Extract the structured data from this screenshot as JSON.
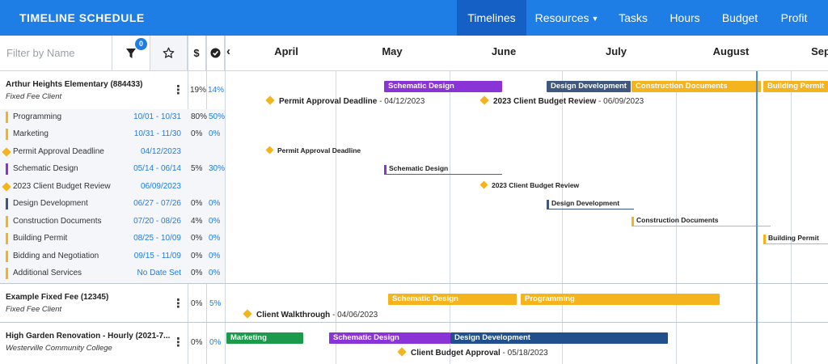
{
  "app": {
    "title": "TIMELINE SCHEDULE"
  },
  "nav": [
    {
      "label": "Timelines",
      "active": true
    },
    {
      "label": "Resources",
      "dropdown": true
    },
    {
      "label": "Tasks"
    },
    {
      "label": "Hours"
    },
    {
      "label": "Budget"
    },
    {
      "label": "Profit"
    }
  ],
  "toolbar": {
    "filter_placeholder": "Filter by Name",
    "filter_count": "0",
    "dollar_label": "$",
    "icons": [
      "filter-icon",
      "star-icon",
      "check-circle-icon",
      "chevron-left-icon"
    ]
  },
  "months": [
    "April",
    "May",
    "June",
    "July",
    "August",
    "Sep"
  ],
  "projects": [
    {
      "title": "Arthur Heights Elementary (884433)",
      "subtitle": "Fixed Fee Client",
      "pct_spent": "19%",
      "pct_complete": "14%",
      "bars": [
        {
          "label": "Schematic Design",
          "color": "#8a33d6"
        },
        {
          "label": "Design Development",
          "color": "#3e587f"
        },
        {
          "label": "Construction Documents",
          "color": "#f5b41e"
        },
        {
          "label": "Building Permit",
          "color": "#f5b41e"
        }
      ],
      "milestones": [
        {
          "name": "Permit Approval Deadline",
          "date": " - 04/12/2023"
        },
        {
          "name": "2023 Client Budget Review",
          "date": " - 06/09/2023"
        }
      ],
      "tasks": [
        {
          "name": "Programming",
          "date": "10/01 - 10/31",
          "pct1": "80%",
          "pct2": "50%",
          "color": "#f5b41e",
          "type": "task"
        },
        {
          "name": "Marketing",
          "date": "10/31 - 11/30",
          "pct1": "0%",
          "pct2": "0%",
          "color": "#f5b41e",
          "type": "task"
        },
        {
          "name": "Permit Approval Deadline",
          "date": "04/12/2023",
          "pct1": "",
          "pct2": "",
          "color": "#f5b41e",
          "type": "milestone"
        },
        {
          "name": "Schematic Design",
          "date": "05/14 - 06/14",
          "pct1": "5%",
          "pct2": "30%",
          "color": "#8a33d6",
          "type": "task"
        },
        {
          "name": "2023 Client Budget Review",
          "date": "06/09/2023",
          "pct1": "",
          "pct2": "",
          "color": "#f5b41e",
          "type": "milestone"
        },
        {
          "name": "Design Development",
          "date": "06/27 - 07/26",
          "pct1": "0%",
          "pct2": "0%",
          "color": "#3e587f",
          "type": "task"
        },
        {
          "name": "Construction Documents",
          "date": "07/20 - 08/26",
          "pct1": "4%",
          "pct2": "0%",
          "color": "#f5b41e",
          "type": "task"
        },
        {
          "name": "Building Permit",
          "date": "08/25 - 10/09",
          "pct1": "0%",
          "pct2": "0%",
          "color": "#f5b41e",
          "type": "task"
        },
        {
          "name": "Bidding and Negotiation",
          "date": "09/15 - 11/09",
          "pct1": "0%",
          "pct2": "0%",
          "color": "#f5b41e",
          "type": "task"
        },
        {
          "name": "Additional Services",
          "date": "No Date Set",
          "pct1": "0%",
          "pct2": "0%",
          "color": "#f5b41e",
          "type": "task"
        }
      ],
      "timeline_tasks": [
        {
          "label": "Permit Approval Deadline",
          "type": "milestone"
        },
        {
          "label": "Schematic Design",
          "color": "#8a33d6"
        },
        {
          "label": "2023 Client Budget Review",
          "type": "milestone"
        },
        {
          "label": "Design Development",
          "color": "#3e587f"
        },
        {
          "label": "Construction Documents",
          "color": "#f5b41e"
        },
        {
          "label": "Building Permit",
          "color": "#f5b41e"
        }
      ]
    },
    {
      "title": "Example Fixed Fee (12345)",
      "subtitle": "Fixed Fee Client",
      "pct_spent": "0%",
      "pct_complete": "5%",
      "bars": [
        {
          "label": "Schematic Design",
          "color": "#f5b41e"
        },
        {
          "label": "Programming",
          "color": "#f5b41e"
        }
      ],
      "milestones": [
        {
          "name": "Client Walkthrough",
          "date": " - 04/06/2023"
        }
      ]
    },
    {
      "title": "High Garden Renovation - Hourly (2021-7...",
      "subtitle": "Westerville Community College",
      "pct_spent": "0%",
      "pct_complete": "0%",
      "bars": [
        {
          "label": "Marketing",
          "color": "#1a9a4a"
        },
        {
          "label": "Schematic Design",
          "color": "#8a33d6"
        },
        {
          "label": "Design Development",
          "color": "#22508c"
        }
      ],
      "milestones": [
        {
          "name": "Client Budget Approval",
          "date": " - 05/18/2023"
        }
      ]
    }
  ]
}
